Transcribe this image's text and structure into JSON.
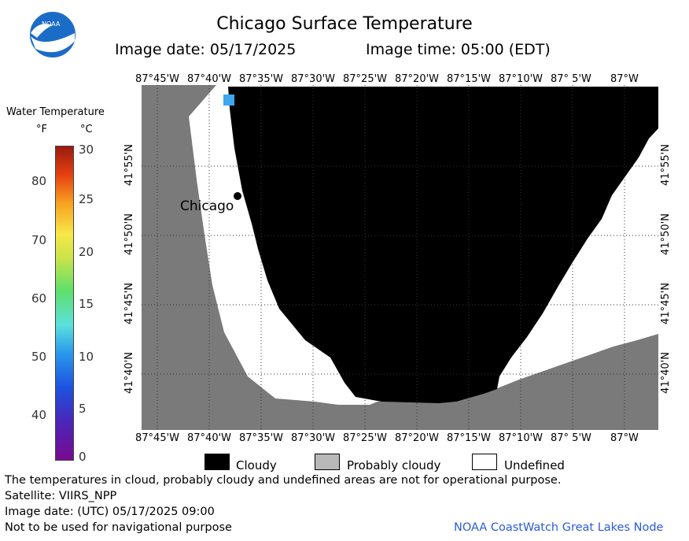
{
  "header": {
    "title": "Chicago Surface Temperature",
    "image_date": "Image date: 05/17/2025",
    "image_time": "Image time: 05:00 (EDT)"
  },
  "logo": {
    "text": "NOAA",
    "color": "#1b6cc7"
  },
  "legend": {
    "title": "Water Temperature",
    "unit_f": "°F",
    "unit_c": "°C",
    "f_ticks": [
      "80",
      "70",
      "60",
      "50",
      "40"
    ],
    "c_ticks": [
      "30",
      "25",
      "20",
      "15",
      "10",
      "5",
      "0"
    ]
  },
  "map": {
    "lon_labels": [
      "87°45'W",
      "87°40'W",
      "87°35'W",
      "87°30'W",
      "87°25'W",
      "87°20'W",
      "87°15'W",
      "87°10'W",
      "87° 5'W",
      "87°W"
    ],
    "lat_labels": [
      "41°55'N",
      "41°50'N",
      "41°45'N",
      "41°40'N"
    ],
    "city_label": "Chicago",
    "colors": {
      "land": "#7a7a7a",
      "cloud": "#000000",
      "undefined": "#ffffff"
    }
  },
  "key": {
    "cloudy": "Cloudy",
    "probably_cloudy": "Probably cloudy",
    "undefined": "Undefined"
  },
  "footer": {
    "note": "The temperatures in cloud, probably cloudy and undefined areas are not for operational purpose.",
    "satellite": "Satellite: VIIRS_NPP",
    "utc_date": "Image date: (UTC) 05/17/2025  09:00",
    "warning": "Not to be used for navigational purpose",
    "node": "NOAA CoastWatch Great Lakes Node"
  }
}
